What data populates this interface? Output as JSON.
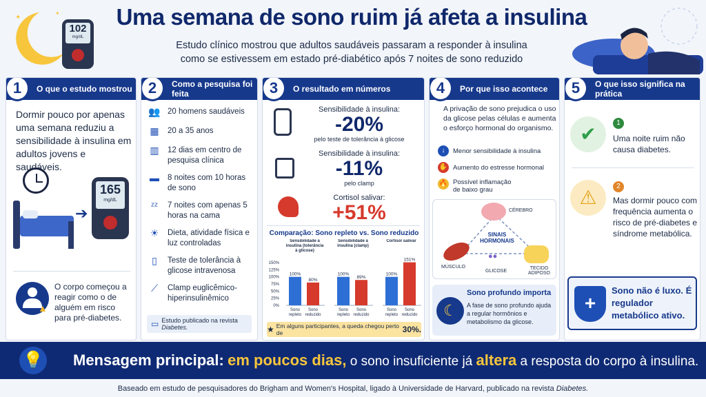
{
  "header": {
    "title": "Uma semana de sono ruim já afeta a insulina",
    "subtitle_line1": "Estudo clínico mostrou que adultos saudáveis passaram a responder à insulina",
    "subtitle_line2": "como se estivessem em estado pré-diabético após 7 noites de sono reduzido",
    "glucometer_value": "102",
    "glucometer_unit": "mg/dL"
  },
  "col1": {
    "num": "1",
    "title": "O que o estudo mostrou",
    "text": "Dormir pouco por apenas uma semana reduziu a sensibilidade à insulina em adultos jovens e saudáveis.",
    "meter_value": "165",
    "meter_unit": "mg/dL",
    "footer_text": "O corpo começou a reagir como o de alguém em risco para pré-diabetes."
  },
  "col2": {
    "num": "2",
    "title": "Como a pesquisa foi feita",
    "items": [
      "20 homens saudáveis",
      "20 a 35 anos",
      "12 dias em centro de pesquisa clínica",
      "8 noites com 10 horas de sono",
      "7 noites com apenas 5 horas na cama",
      "Dieta, atividade física e luz controladas",
      "Teste de tolerância à glicose intravenosa",
      "Clamp euglicêmico-hiperinsulinêmico"
    ],
    "journal": "Estudo publicado na revista ",
    "journal_name": "Diabetes."
  },
  "col3": {
    "num": "3",
    "title": "O resultado em números",
    "stats": [
      {
        "label": "Sensibilidade à insulina:",
        "value": "-20%",
        "note": "pelo teste de tolerância à glicose"
      },
      {
        "label": "Sensibilidade à insulina:",
        "value": "-11%",
        "note": "pelo clamp"
      },
      {
        "label": "Cortisol salivar:",
        "value": "+51%",
        "note": ""
      }
    ],
    "comparison_title": "Comparação: Sono repleto vs. Sono reduzido",
    "footnote": "Em alguns participantes, a queda chegou perto de ",
    "footnote_value": "30%."
  },
  "chart_data": {
    "type": "bar",
    "ylim": [
      0,
      150
    ],
    "yticks": [
      "150%",
      "125%",
      "100%",
      "75%",
      "50%",
      "25%",
      "0%"
    ],
    "groups": [
      {
        "label": "Sensibilidade à insulina (tolerância à glicose)",
        "values": [
          100,
          80
        ],
        "labels": [
          "100%",
          "80%"
        ]
      },
      {
        "label": "Sensibilidade à insulina (clamp)",
        "values": [
          100,
          89
        ],
        "labels": [
          "100%",
          "89%"
        ]
      },
      {
        "label": "Cortisol salivar",
        "values": [
          100,
          151
        ],
        "labels": [
          "100%",
          "151%"
        ]
      }
    ],
    "categories": [
      "Sono repleto",
      "Sono reduzido"
    ],
    "colors": [
      "#2e6fd6",
      "#d63a2c"
    ]
  },
  "col4": {
    "num": "4",
    "title": "Por que isso acontece",
    "text": "A privação de sono prejudica o uso da glicose pelas células e aumenta o esforço hormonal do organismo.",
    "items": [
      "Menor sensibilidade à insulina",
      "Aumento do estresse hormonal",
      "Possível inflamação de baixo grau"
    ],
    "diagram": {
      "center": "SINAIS HORMONAIS",
      "brain": "CÉREBRO",
      "muscle": "MÚSCULO",
      "glucose": "GLICOSE",
      "fat": "TECIDO ADIPOSO"
    },
    "deep_title": "Sono profundo importa",
    "deep_text": "A fase de sono profundo ajuda a regular hormônios e metabolismo da glicose."
  },
  "col5": {
    "num": "5",
    "title": "O que isso significa na prática",
    "point1_num": "1",
    "point1": "Uma noite ruim não causa diabetes.",
    "point2_num": "2",
    "point2": "Mas dormir pouco com frequência aumenta o risco de pré-diabetes e síndrome metabólica.",
    "banner": "Sono não é luxo. É regulador metabólico ativo."
  },
  "message": {
    "lead": "Mensagem principal:",
    "highlight1": "em poucos dias,",
    "mid": "o sono insuficiente já",
    "highlight2": "altera",
    "end": "a resposta do corpo à insulina."
  },
  "footer": {
    "text": "Baseado em estudo de pesquisadores do Brigham and Women's Hospital, ligado à Universidade de Harvard, publicado na revista ",
    "journal": "Diabetes."
  }
}
